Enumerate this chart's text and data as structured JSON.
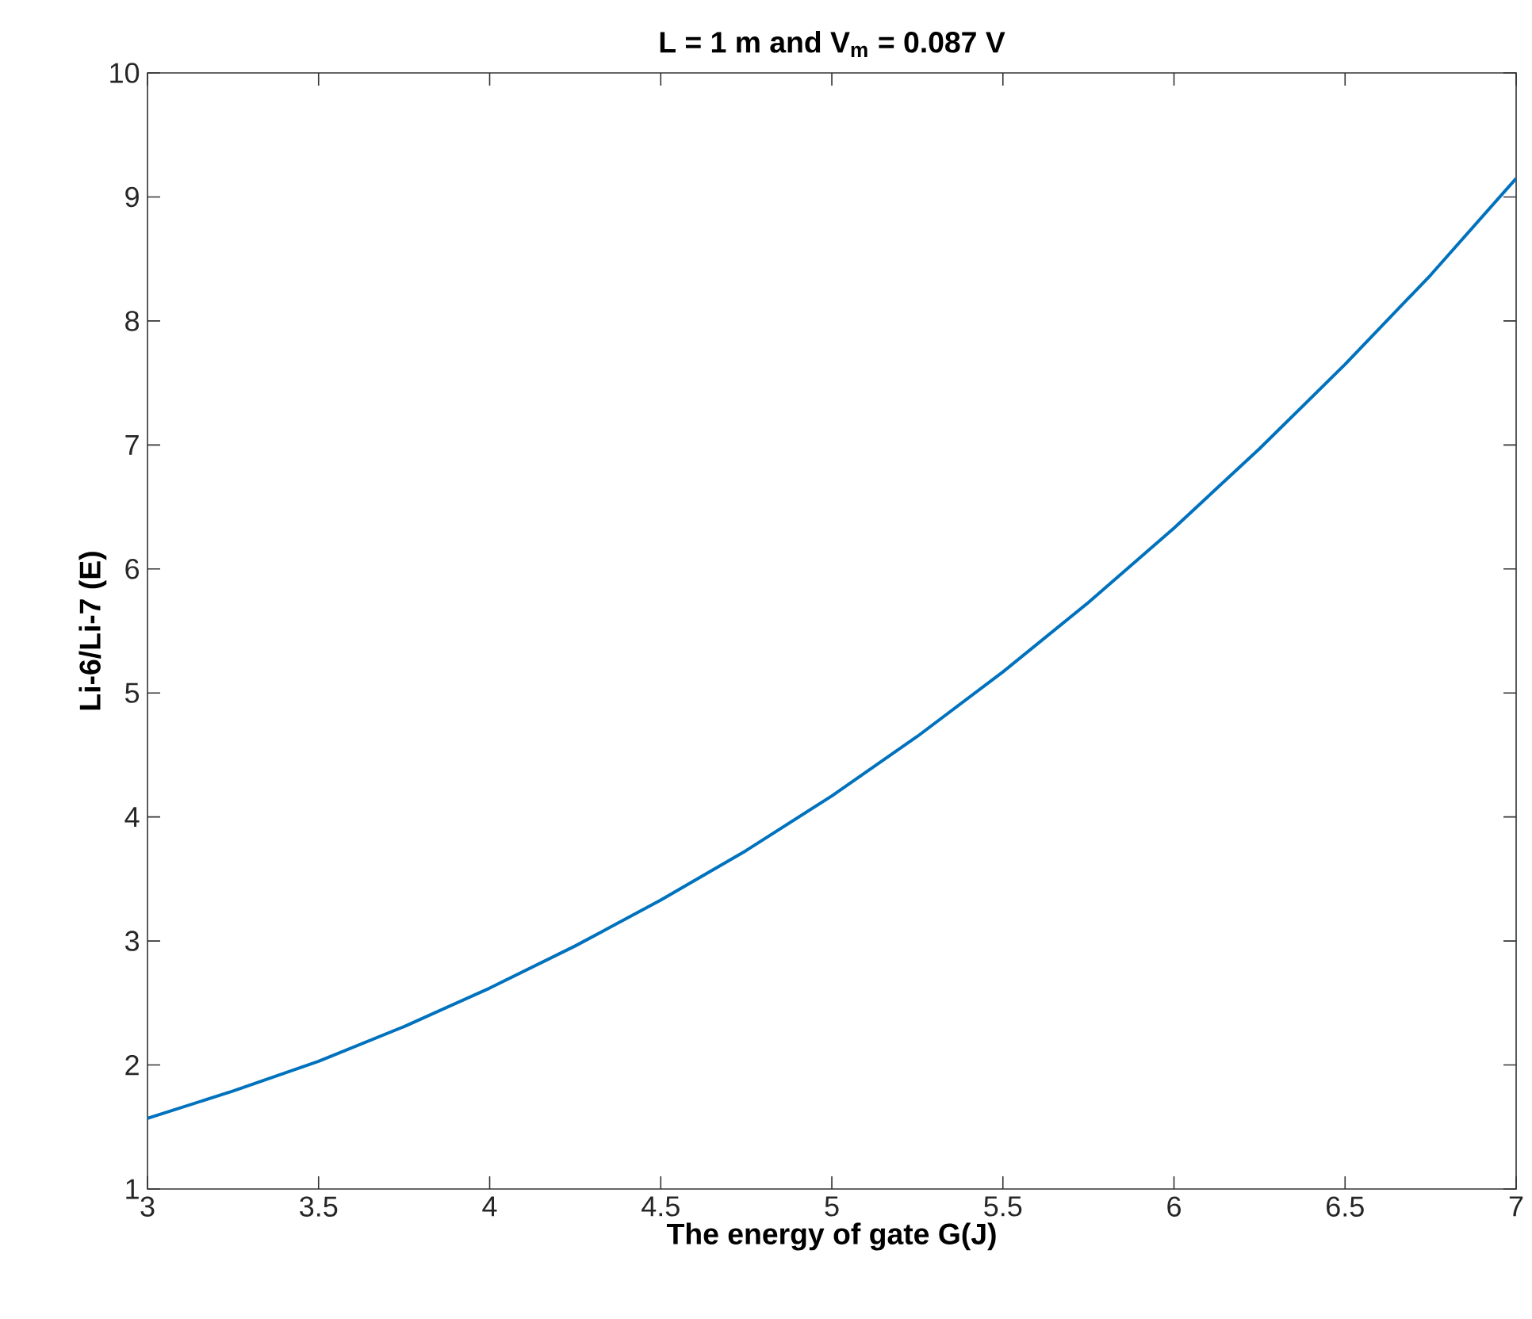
{
  "chart_data": {
    "type": "line",
    "title": "L = 1 m and V$_{m}$ = 0.087 V",
    "xlabel": "The energy of gate G(J)",
    "ylabel": "Li-6/Li-7 (E)",
    "x": [
      3,
      3.25,
      3.5,
      3.75,
      4,
      4.25,
      4.5,
      4.75,
      5,
      5.25,
      5.5,
      5.75,
      6,
      6.25,
      6.5,
      6.75,
      7
    ],
    "series": [
      {
        "color": "#0072bd",
        "values": [
          1.57,
          1.79,
          2.03,
          2.31,
          2.62,
          2.96,
          3.33,
          3.73,
          4.17,
          4.65,
          5.17,
          5.73,
          6.33,
          6.97,
          7.65,
          8.37,
          9.15
        ]
      }
    ],
    "xlim": [
      3,
      7
    ],
    "ylim": [
      1,
      10
    ],
    "xticks": [
      3,
      3.5,
      4,
      4.5,
      5,
      5.5,
      6,
      6.5,
      7
    ],
    "yticks": [
      1,
      2,
      3,
      4,
      5,
      6,
      7,
      8,
      9,
      10
    ],
    "marker": "none",
    "line_style": "solid"
  }
}
